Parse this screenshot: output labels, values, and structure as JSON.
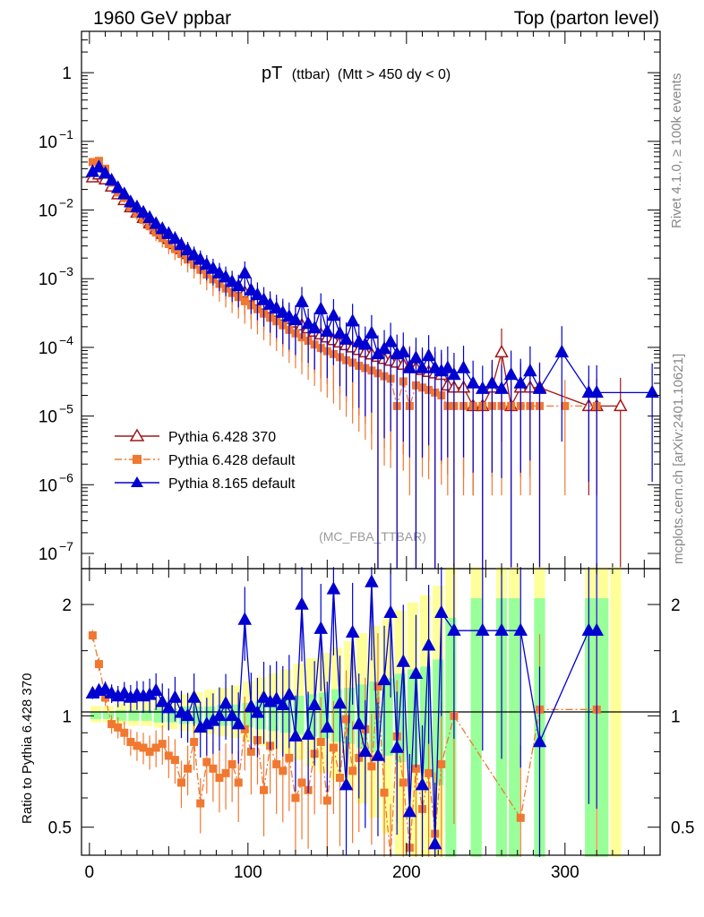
{
  "header": {
    "left": "1960 GeV ppbar",
    "right": "Top (parton level)"
  },
  "plot_title": {
    "main": "pT",
    "sub1": "(ttbar)",
    "sub2": "(Mtt > 450 dy < 0)"
  },
  "side_labels": {
    "top": "Rivet 4.1.0, ≥ 100k events",
    "bottom": "mcplots.cern.ch [arXiv:2401.10621]"
  },
  "analysis_tag": "(MC_FBA_TTBAR)",
  "ratio_ylabel": "Ratio to Pythia 6.428 370",
  "legend": [
    {
      "label": "Pythia 6.428 370",
      "color": "#a01818",
      "marker": "open-triangle",
      "style": "solid"
    },
    {
      "label": "Pythia 6.428 default",
      "color": "#f07830",
      "marker": "filled-square",
      "style": "dashdot"
    },
    {
      "label": "Pythia 8.165 default",
      "color": "#0000d0",
      "marker": "filled-triangle",
      "style": "solid"
    }
  ],
  "chart_data": {
    "type": "line",
    "xlim": [
      -5,
      360
    ],
    "main": {
      "yscale": "log",
      "ylim": [
        6e-08,
        4
      ],
      "yticks": [
        {
          "v": 1,
          "label": "1"
        },
        {
          "v": 0.1,
          "label": "10",
          "exp": "−1"
        },
        {
          "v": 0.01,
          "label": "10",
          "exp": "−2"
        },
        {
          "v": 0.001,
          "label": "10",
          "exp": "−3"
        },
        {
          "v": 0.0001,
          "label": "10",
          "exp": "−4"
        },
        {
          "v": 1e-05,
          "label": "10",
          "exp": "−5"
        },
        {
          "v": 1e-06,
          "label": "10",
          "exp": "−6"
        },
        {
          "v": 1e-07,
          "label": "10",
          "exp": "−7"
        }
      ]
    },
    "ratio": {
      "yscale": "log",
      "ylim": [
        0.42,
        2.5
      ],
      "yticks": [
        {
          "v": 0.5,
          "label": "0.5"
        },
        {
          "v": 1,
          "label": "1"
        },
        {
          "v": 2,
          "label": "2"
        }
      ]
    },
    "xticks": [
      0,
      100,
      200,
      300
    ],
    "series": [
      {
        "name": "Pythia 6.428 370",
        "x": [
          2,
          6,
          10,
          14,
          18,
          22,
          26,
          30,
          34,
          38,
          42,
          46,
          50,
          54,
          58,
          62,
          66,
          70,
          74,
          78,
          82,
          86,
          90,
          94,
          98,
          102,
          106,
          110,
          114,
          118,
          122,
          126,
          130,
          134,
          138,
          142,
          146,
          150,
          154,
          158,
          162,
          166,
          170,
          174,
          178,
          182,
          186,
          190,
          194,
          198,
          202,
          206,
          210,
          214,
          218,
          222,
          226,
          230,
          236,
          242,
          248,
          254,
          260,
          266,
          272,
          278,
          284,
          315,
          320,
          335
        ],
        "y": [
          0.03,
          0.033,
          0.028,
          0.022,
          0.017,
          0.014,
          0.011,
          0.0092,
          0.0077,
          0.0064,
          0.0053,
          0.0045,
          0.0038,
          0.0032,
          0.0027,
          0.0023,
          0.002,
          0.0017,
          0.00145,
          0.00125,
          0.00108,
          0.00094,
          0.00082,
          0.00072,
          0.00063,
          0.00055,
          0.00048,
          0.00042,
          0.00037,
          0.00033,
          0.00029,
          0.00026,
          0.00023,
          0.00021,
          0.00019,
          0.00017,
          0.000155,
          0.00014,
          0.000128,
          0.000118,
          0.000108,
          0.0001,
          9.2e-05,
          8.5e-05,
          7.9e-05,
          7.3e-05,
          6.8e-05,
          6.4e-05,
          6e-05,
          5.6e-05,
          5.3e-05,
          5e-05,
          4.7e-05,
          4.4e-05,
          4.2e-05,
          4e-05,
          2.8e-05,
          2.6e-05,
          2.6e-05,
          1.4e-05,
          1.4e-05,
          2.6e-05,
          8.5e-05,
          1.4e-05,
          2.6e-05,
          2.6e-05,
          2.6e-05,
          1.4e-05,
          1.4e-05,
          1.4e-05
        ]
      },
      {
        "name": "Pythia 6.428 default",
        "x": [
          2,
          6,
          10,
          14,
          18,
          22,
          26,
          30,
          34,
          38,
          42,
          46,
          50,
          54,
          58,
          62,
          66,
          70,
          74,
          78,
          82,
          86,
          90,
          94,
          98,
          102,
          106,
          110,
          114,
          118,
          122,
          126,
          130,
          134,
          138,
          142,
          146,
          150,
          154,
          158,
          162,
          166,
          170,
          174,
          178,
          182,
          186,
          190,
          194,
          198,
          202,
          206,
          210,
          214,
          218,
          222,
          226,
          230,
          236,
          242,
          248,
          254,
          260,
          266,
          272,
          278,
          284,
          300,
          320
        ],
        "y": [
          0.05,
          0.052,
          0.04,
          0.025,
          0.018,
          0.015,
          0.011,
          0.0088,
          0.0072,
          0.0058,
          0.0047,
          0.0039,
          0.0032,
          0.0027,
          0.0023,
          0.0019,
          0.0016,
          0.00135,
          0.00115,
          0.00098,
          0.00084,
          0.00072,
          0.00062,
          0.00054,
          0.00047,
          0.00041,
          0.00036,
          0.00031,
          0.00027,
          0.00024,
          0.00021,
          0.00018,
          0.00016,
          0.00014,
          0.000125,
          0.00011,
          9.8e-05,
          8.8e-05,
          8e-05,
          7.2e-05,
          6.5e-05,
          6e-05,
          5.4e-05,
          5e-05,
          4.6e-05,
          4.2e-05,
          3.8e-05,
          3.5e-05,
          1.4e-05,
          3.2e-05,
          1.4e-05,
          2.8e-05,
          2.6e-05,
          2.4e-05,
          2.2e-05,
          2e-05,
          1.4e-05,
          1.4e-05,
          1.4e-05,
          1.4e-05,
          1.4e-05,
          1.4e-05,
          1.4e-05,
          1.4e-05,
          1.4e-05,
          1.4e-05,
          1.4e-05,
          1.4e-05,
          1.4e-05
        ]
      },
      {
        "name": "Pythia 8.165 default",
        "x": [
          2,
          6,
          10,
          14,
          18,
          22,
          26,
          30,
          34,
          38,
          42,
          46,
          50,
          54,
          58,
          62,
          66,
          70,
          74,
          78,
          82,
          86,
          90,
          94,
          98,
          102,
          106,
          110,
          114,
          118,
          122,
          126,
          130,
          134,
          138,
          142,
          146,
          150,
          154,
          158,
          162,
          166,
          170,
          174,
          178,
          182,
          186,
          190,
          194,
          198,
          202,
          206,
          210,
          214,
          218,
          222,
          226,
          230,
          236,
          242,
          248,
          254,
          260,
          266,
          272,
          278,
          284,
          298,
          315,
          320,
          355
        ],
        "y": [
          0.036,
          0.042,
          0.034,
          0.027,
          0.021,
          0.017,
          0.013,
          0.011,
          0.0092,
          0.0077,
          0.0063,
          0.0053,
          0.0045,
          0.0038,
          0.0031,
          0.0026,
          0.0022,
          0.0019,
          0.0016,
          0.0014,
          0.0012,
          0.00105,
          0.0009,
          0.00078,
          0.0012,
          0.00068,
          0.00058,
          0.00049,
          0.00042,
          0.00037,
          0.00032,
          0.00028,
          0.00025,
          0.00046,
          0.00022,
          0.00019,
          0.00036,
          0.00017,
          0.00029,
          0.00016,
          0.00013,
          0.00024,
          0.00012,
          0.00011,
          0.00016,
          8e-05,
          9.5e-05,
          0.00012,
          8e-05,
          8.5e-05,
          5e-05,
          7e-05,
          5e-05,
          7.5e-05,
          5e-05,
          4.5e-05,
          5e-05,
          4e-05,
          5e-05,
          3e-05,
          2.5e-05,
          3e-05,
          2.5e-05,
          4e-05,
          3e-05,
          4.5e-05,
          2.5e-05,
          8.5e-05,
          2.2e-05,
          2.2e-05,
          2.2e-05
        ]
      }
    ],
    "ratios": [
      {
        "name": "Pythia 6.428 default",
        "x": [
          2,
          6,
          10,
          14,
          18,
          22,
          26,
          30,
          34,
          38,
          42,
          46,
          50,
          54,
          58,
          62,
          66,
          70,
          74,
          78,
          82,
          86,
          90,
          94,
          98,
          102,
          106,
          110,
          114,
          118,
          122,
          126,
          130,
          134,
          138,
          142,
          146,
          150,
          154,
          158,
          162,
          166,
          170,
          174,
          178,
          182,
          186,
          190,
          194,
          198,
          202,
          206,
          210,
          214,
          218,
          222,
          230,
          272,
          284,
          320
        ],
        "y": [
          1.65,
          1.38,
          1.12,
          0.95,
          0.93,
          0.9,
          0.85,
          0.83,
          0.82,
          0.8,
          0.82,
          0.84,
          0.78,
          0.76,
          0.66,
          0.72,
          0.85,
          0.58,
          0.75,
          0.72,
          0.68,
          0.7,
          0.74,
          0.66,
          0.92,
          0.8,
          0.86,
          0.63,
          0.83,
          0.74,
          0.71,
          0.77,
          0.6,
          0.66,
          0.63,
          0.79,
          0.85,
          0.59,
          0.82,
          0.68,
          0.98,
          0.71,
          0.77,
          0.92,
          0.73,
          1.2,
          0.62,
          0.41,
          0.88,
          0.66,
          0.44,
          0.72,
          0.56,
          0.7,
          0.48,
          0.74,
          1.0,
          0.53,
          1.04,
          1.04
        ]
      },
      {
        "name": "Pythia 8.165 default",
        "x": [
          2,
          6,
          10,
          14,
          18,
          22,
          26,
          30,
          34,
          38,
          42,
          46,
          50,
          54,
          58,
          62,
          66,
          70,
          74,
          78,
          82,
          86,
          90,
          94,
          98,
          102,
          106,
          110,
          114,
          118,
          122,
          126,
          130,
          134,
          138,
          142,
          146,
          150,
          154,
          158,
          162,
          166,
          170,
          174,
          178,
          182,
          186,
          190,
          194,
          198,
          202,
          206,
          210,
          214,
          218,
          222,
          230,
          248,
          260,
          272,
          284,
          315,
          320
        ],
        "y": [
          1.15,
          1.17,
          1.18,
          1.15,
          1.13,
          1.15,
          1.12,
          1.14,
          1.13,
          1.14,
          1.17,
          1.09,
          1.05,
          1.12,
          1.02,
          1.0,
          1.12,
          0.93,
          0.95,
          0.97,
          1.0,
          1.08,
          1.0,
          0.95,
          1.82,
          1.06,
          1.02,
          1.12,
          1.09,
          1.11,
          1.07,
          1.14,
          0.88,
          2.0,
          0.89,
          1.07,
          1.72,
          0.93,
          2.2,
          1.08,
          0.65,
          1.68,
          0.95,
          0.8,
          2.3,
          0.78,
          1.25,
          1.9,
          0.82,
          1.4,
          0.55,
          1.3,
          0.65,
          1.55,
          0.45,
          1.9,
          1.7,
          1.7,
          1.7,
          1.7,
          0.85,
          1.7,
          1.7
        ]
      }
    ],
    "bands": {
      "x_edges": [
        0,
        8,
        16,
        24,
        32,
        40,
        48,
        56,
        64,
        72,
        80,
        88,
        96,
        104,
        112,
        120,
        128,
        136,
        144,
        152,
        160,
        168,
        176,
        184,
        192,
        200,
        208,
        216,
        224,
        232,
        240,
        248,
        256,
        264,
        272,
        280,
        288,
        312,
        320,
        328,
        336
      ],
      "inner": [
        0.02,
        0.02,
        0.03,
        0.03,
        0.03,
        0.04,
        0.04,
        0.05,
        0.05,
        0.05,
        0.06,
        0.06,
        0.07,
        0.08,
        0.09,
        0.1,
        0.11,
        0.12,
        0.13,
        0.15,
        0.16,
        0.18,
        0.2,
        0.22,
        0.25,
        0.28,
        0.3,
        0.35,
        0.7,
        0.0,
        0.9,
        0.0,
        0.9,
        0.9,
        0.0,
        0.9,
        0.0,
        0.9,
        0.9,
        0.0
      ],
      "outer": [
        0.04,
        0.04,
        0.05,
        0.06,
        0.06,
        0.07,
        0.08,
        0.09,
        0.1,
        0.11,
        0.12,
        0.13,
        0.15,
        0.17,
        0.19,
        0.21,
        0.24,
        0.27,
        0.3,
        0.33,
        0.37,
        0.42,
        0.47,
        0.52,
        0.58,
        0.64,
        0.7,
        0.78,
        0.95,
        0.0,
        0.95,
        0.0,
        0.95,
        0.95,
        0.0,
        0.95,
        0.0,
        0.95,
        0.95,
        0.95
      ]
    }
  }
}
